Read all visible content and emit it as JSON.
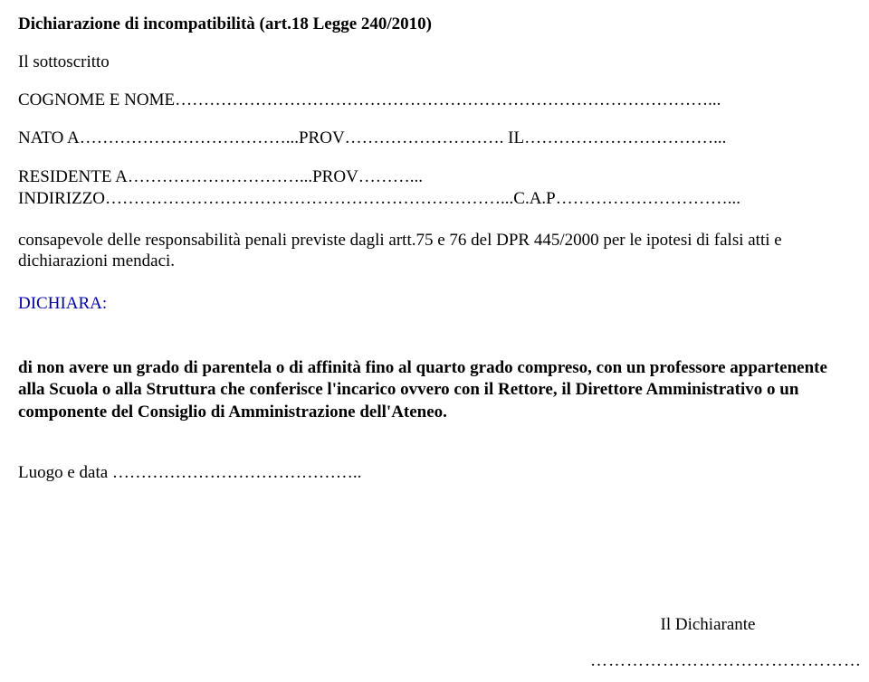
{
  "title": "Dichiarazione di incompatibilità (art.18 Legge 240/2010)",
  "sottoscritto": "Il sottoscritto",
  "cognome_line": "COGNOME E NOME…………………………………………………………………………………...",
  "nato_line": "NATO A………………………………...PROV………………………. IL……………………………...",
  "residente_line": "RESIDENTE A…………………………...PROV………... INDIRIZZO……………………………………………………………...C.A.P…………………………...",
  "consapevole": "consapevole delle responsabilità penali previste dagli artt.75 e 76 del DPR 445/2000 per le ipotesi di falsi atti e dichiarazioni mendaci.",
  "dichiara": "DICHIARA:",
  "body": "di non avere un grado di parentela o di affinità fino al quarto grado compreso, con un professore appartenente alla Scuola o alla Struttura che conferisce l'incarico ovvero con il Rettore, il Direttore Amministrativo o un componente del Consiglio di Amministrazione dell'Ateneo.",
  "luogo": "Luogo e data ……………………………………..",
  "dichiarante": "Il Dichiarante",
  "sigline": "………………………………………",
  "colors": {
    "text": "#000000",
    "declares": "#0000aa",
    "background": "#ffffff"
  },
  "font": {
    "family": "Times New Roman",
    "size_pt": 14
  }
}
